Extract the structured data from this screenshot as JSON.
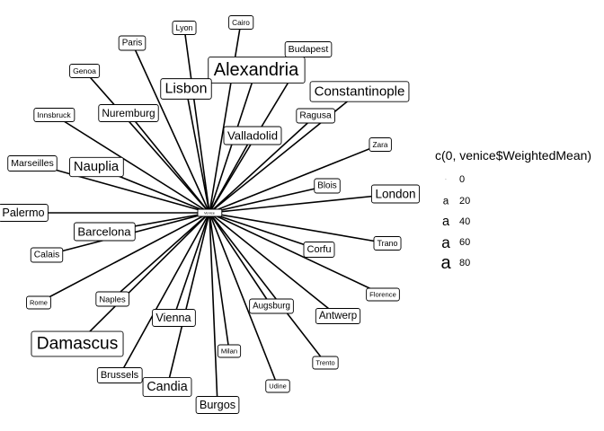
{
  "chart_data": {
    "type": "network",
    "hub": {
      "name": "Venice",
      "weight": 0
    },
    "nodes": [
      {
        "name": "Lyon",
        "weight": 12
      },
      {
        "name": "Cairo",
        "weight": 8
      },
      {
        "name": "Budapest",
        "weight": 22
      },
      {
        "name": "Paris",
        "weight": 18
      },
      {
        "name": "Genoa",
        "weight": 10
      },
      {
        "name": "Alexandria",
        "weight": 80
      },
      {
        "name": "Constantinople",
        "weight": 50
      },
      {
        "name": "Lisbon",
        "weight": 55
      },
      {
        "name": "Innsbruck",
        "weight": 10
      },
      {
        "name": "Nuremburg",
        "weight": 30
      },
      {
        "name": "Ragusa",
        "weight": 20
      },
      {
        "name": "Valladolid",
        "weight": 38
      },
      {
        "name": "Zara",
        "weight": 8
      },
      {
        "name": "Marseilles",
        "weight": 22
      },
      {
        "name": "Nauplia",
        "weight": 48
      },
      {
        "name": "Blois",
        "weight": 18
      },
      {
        "name": "London",
        "weight": 40
      },
      {
        "name": "Palermo",
        "weight": 35
      },
      {
        "name": "Barcelona",
        "weight": 38
      },
      {
        "name": "Trano",
        "weight": 12
      },
      {
        "name": "Calais",
        "weight": 20
      },
      {
        "name": "Corfu",
        "weight": 25
      },
      {
        "name": "Florence",
        "weight": 4
      },
      {
        "name": "Rome",
        "weight": 3
      },
      {
        "name": "Naples",
        "weight": 15
      },
      {
        "name": "Augsburg",
        "weight": 17
      },
      {
        "name": "Antwerp",
        "weight": 28
      },
      {
        "name": "Vienna",
        "weight": 35
      },
      {
        "name": "Damascus",
        "weight": 75
      },
      {
        "name": "Milan",
        "weight": 4
      },
      {
        "name": "Trento",
        "weight": 3
      },
      {
        "name": "Brussels",
        "weight": 25
      },
      {
        "name": "Candia",
        "weight": 45
      },
      {
        "name": "Udine",
        "weight": 3
      },
      {
        "name": "Burgos",
        "weight": 35
      }
    ],
    "legend": {
      "title": "c(0, venice$WeightedMean)",
      "glyph": "a",
      "entries": [
        0,
        20,
        40,
        60,
        80
      ],
      "placement": "right"
    },
    "size_range": [
      0,
      80
    ]
  }
}
